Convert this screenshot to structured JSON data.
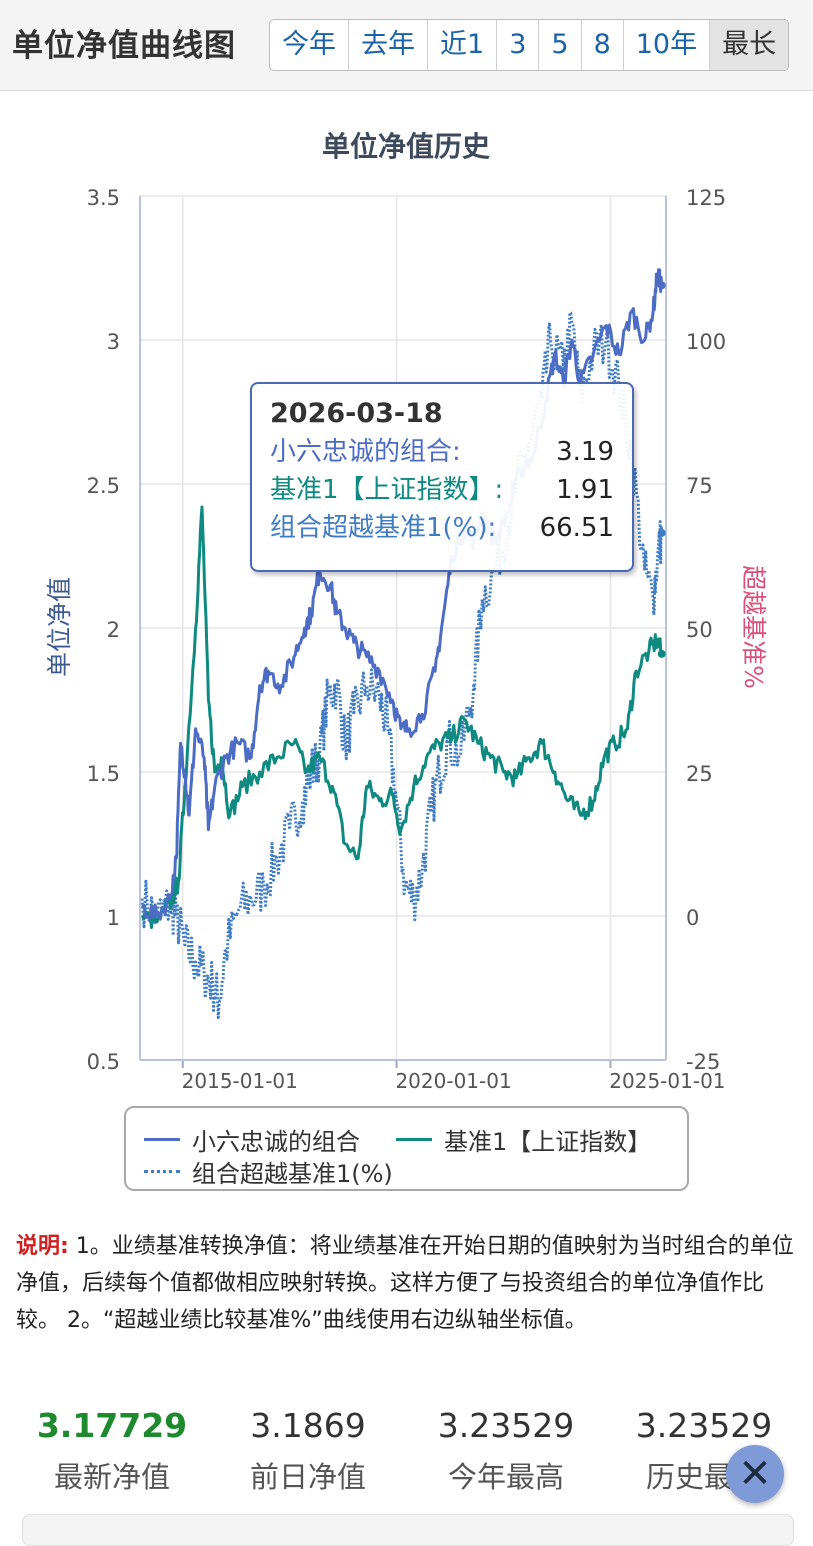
{
  "header": {
    "title": "单位净值曲线图",
    "ranges": [
      "今年",
      "去年",
      "近1",
      "3",
      "5",
      "8",
      "10年",
      "最长"
    ],
    "active_range": "最长"
  },
  "tooltip": {
    "date": "2026-03-18",
    "rows": [
      {
        "label": "小六忠诚的组合:",
        "value": "3.19"
      },
      {
        "label": "基准1【上证指数】:",
        "value": "1.91"
      },
      {
        "label": "组合超越基准1(%):",
        "value": "66.51"
      }
    ]
  },
  "chart_data": {
    "type": "line",
    "title": "单位净值历史",
    "ylabel": "单位净值",
    "y2label": "超越基准%",
    "ylim": [
      0.5,
      3.5
    ],
    "y2lim": [
      -25,
      125
    ],
    "yticks": [
      "3.5",
      "3",
      "2.5",
      "2",
      "1.5",
      "1",
      "0.5"
    ],
    "y2ticks": [
      "125",
      "100",
      "75",
      "50",
      "25",
      "0",
      "-25"
    ],
    "xlim": [
      2014.0,
      2026.3
    ],
    "xticks": [
      {
        "label": "2015-01-01",
        "x": 2015.0
      },
      {
        "label": "2020-01-01",
        "x": 2020.0
      },
      {
        "label": "2025-01-01",
        "x": 2025.0
      }
    ],
    "grid": true,
    "legend_position": "bottom",
    "series": [
      {
        "name": "小六忠诚的组合",
        "axis": "left",
        "color": "#4d6cc4",
        "style": "solid",
        "points": [
          [
            2014.05,
            1.03
          ],
          [
            2014.4,
            1.0
          ],
          [
            2014.7,
            1.06
          ],
          [
            2014.85,
            1.2
          ],
          [
            2014.95,
            1.6
          ],
          [
            2015.05,
            1.5
          ],
          [
            2015.15,
            1.35
          ],
          [
            2015.3,
            1.65
          ],
          [
            2015.5,
            1.55
          ],
          [
            2015.6,
            1.3
          ],
          [
            2015.75,
            1.45
          ],
          [
            2016.0,
            1.55
          ],
          [
            2016.3,
            1.6
          ],
          [
            2016.6,
            1.55
          ],
          [
            2016.8,
            1.8
          ],
          [
            2017.0,
            1.85
          ],
          [
            2017.3,
            1.8
          ],
          [
            2017.6,
            1.9
          ],
          [
            2017.85,
            2.0
          ],
          [
            2018.0,
            2.05
          ],
          [
            2018.2,
            2.2
          ],
          [
            2018.45,
            2.15
          ],
          [
            2018.6,
            2.05
          ],
          [
            2018.8,
            2.0
          ],
          [
            2019.0,
            1.95
          ],
          [
            2019.3,
            1.9
          ],
          [
            2019.6,
            1.85
          ],
          [
            2019.9,
            1.75
          ],
          [
            2020.1,
            1.65
          ],
          [
            2020.3,
            1.65
          ],
          [
            2020.6,
            1.7
          ],
          [
            2020.9,
            1.85
          ],
          [
            2021.1,
            2.05
          ],
          [
            2021.3,
            2.25
          ],
          [
            2021.6,
            2.35
          ],
          [
            2021.8,
            2.3
          ],
          [
            2022.0,
            2.4
          ],
          [
            2022.3,
            2.3
          ],
          [
            2022.6,
            2.4
          ],
          [
            2022.9,
            2.55
          ],
          [
            2023.2,
            2.6
          ],
          [
            2023.5,
            2.8
          ],
          [
            2023.7,
            2.95
          ],
          [
            2023.9,
            2.85
          ],
          [
            2024.1,
            3.0
          ],
          [
            2024.3,
            2.85
          ],
          [
            2024.6,
            2.95
          ],
          [
            2024.9,
            3.05
          ],
          [
            2025.2,
            2.95
          ],
          [
            2025.5,
            3.1
          ],
          [
            2025.8,
            3.0
          ],
          [
            2026.0,
            3.1
          ],
          [
            2026.1,
            3.23
          ],
          [
            2026.2,
            3.19
          ]
        ]
      },
      {
        "name": "基准1【上证指数】",
        "axis": "left",
        "color": "#0e8a80",
        "style": "solid",
        "points": [
          [
            2014.05,
            1.0
          ],
          [
            2014.4,
            0.98
          ],
          [
            2014.7,
            1.04
          ],
          [
            2014.9,
            1.12
          ],
          [
            2015.05,
            1.45
          ],
          [
            2015.3,
            2.0
          ],
          [
            2015.45,
            2.42
          ],
          [
            2015.6,
            1.75
          ],
          [
            2015.75,
            1.5
          ],
          [
            2015.9,
            1.55
          ],
          [
            2016.1,
            1.35
          ],
          [
            2016.4,
            1.45
          ],
          [
            2016.8,
            1.5
          ],
          [
            2017.2,
            1.55
          ],
          [
            2017.6,
            1.6
          ],
          [
            2017.9,
            1.5
          ],
          [
            2018.2,
            1.55
          ],
          [
            2018.5,
            1.45
          ],
          [
            2018.8,
            1.25
          ],
          [
            2019.1,
            1.2
          ],
          [
            2019.3,
            1.45
          ],
          [
            2019.6,
            1.4
          ],
          [
            2019.9,
            1.42
          ],
          [
            2020.1,
            1.3
          ],
          [
            2020.4,
            1.45
          ],
          [
            2020.7,
            1.55
          ],
          [
            2021.0,
            1.6
          ],
          [
            2021.3,
            1.62
          ],
          [
            2021.6,
            1.68
          ],
          [
            2021.9,
            1.6
          ],
          [
            2022.2,
            1.55
          ],
          [
            2022.5,
            1.5
          ],
          [
            2022.8,
            1.48
          ],
          [
            2023.1,
            1.55
          ],
          [
            2023.4,
            1.6
          ],
          [
            2023.7,
            1.5
          ],
          [
            2024.0,
            1.4
          ],
          [
            2024.3,
            1.35
          ],
          [
            2024.6,
            1.4
          ],
          [
            2024.85,
            1.55
          ],
          [
            2025.1,
            1.6
          ],
          [
            2025.4,
            1.65
          ],
          [
            2025.6,
            1.85
          ],
          [
            2025.9,
            1.92
          ],
          [
            2026.1,
            1.96
          ],
          [
            2026.2,
            1.91
          ]
        ]
      },
      {
        "name": "组合超越基准1(%)",
        "axis": "right",
        "color": "#3f7cc4",
        "style": "dotted",
        "points": [
          [
            2014.05,
            3
          ],
          [
            2014.4,
            0
          ],
          [
            2014.7,
            2
          ],
          [
            2014.85,
            0
          ],
          [
            2015.05,
            -5
          ],
          [
            2015.3,
            -8
          ],
          [
            2015.5,
            -10
          ],
          [
            2015.7,
            -12
          ],
          [
            2015.85,
            -15
          ],
          [
            2016.0,
            -6
          ],
          [
            2016.3,
            1
          ],
          [
            2016.6,
            3
          ],
          [
            2016.9,
            5
          ],
          [
            2017.2,
            10
          ],
          [
            2017.5,
            15
          ],
          [
            2017.8,
            20
          ],
          [
            2018.0,
            25
          ],
          [
            2018.2,
            28
          ],
          [
            2018.4,
            38
          ],
          [
            2018.6,
            40
          ],
          [
            2018.8,
            30
          ],
          [
            2019.0,
            35
          ],
          [
            2019.3,
            40
          ],
          [
            2019.6,
            38
          ],
          [
            2019.8,
            32
          ],
          [
            2020.0,
            20
          ],
          [
            2020.2,
            5
          ],
          [
            2020.4,
            3
          ],
          [
            2020.6,
            8
          ],
          [
            2020.8,
            18
          ],
          [
            2021.0,
            25
          ],
          [
            2021.2,
            30
          ],
          [
            2021.5,
            28
          ],
          [
            2021.8,
            40
          ],
          [
            2022.0,
            55
          ],
          [
            2022.3,
            60
          ],
          [
            2022.6,
            68
          ],
          [
            2022.8,
            75
          ],
          [
            2023.1,
            82
          ],
          [
            2023.4,
            90
          ],
          [
            2023.6,
            100
          ],
          [
            2023.9,
            95
          ],
          [
            2024.1,
            103
          ],
          [
            2024.3,
            90
          ],
          [
            2024.6,
            98
          ],
          [
            2024.9,
            100
          ],
          [
            2025.2,
            92
          ],
          [
            2025.5,
            80
          ],
          [
            2025.8,
            60
          ],
          [
            2026.0,
            55
          ],
          [
            2026.1,
            62
          ],
          [
            2026.2,
            66.51
          ]
        ]
      }
    ]
  },
  "legend": [
    {
      "label": "小六忠诚的组合",
      "color": "#4d6cc4",
      "style": "solid"
    },
    {
      "label": "基准1【上证指数】",
      "color": "#0e8a80",
      "style": "solid"
    },
    {
      "label": "组合超越基准1(%)",
      "color": "#3f7cc4",
      "style": "dotted"
    }
  ],
  "note": {
    "label": "说明:",
    "text": " 1。业绩基准转换净值：将业绩基准在开始日期的值映射为当时组合的单位净值，后续每个值都做相应映射转换。这样方便了与投资组合的单位净值作比较。 2。“超越业绩比较基准%”曲线使用右边纵轴坐标值。"
  },
  "stats": [
    {
      "value": "3.17729",
      "label": "最新净值",
      "highlight": true
    },
    {
      "value": "3.1869",
      "label": "前日净值",
      "highlight": false
    },
    {
      "value": "3.23529",
      "label": "今年最高",
      "highlight": false
    },
    {
      "value": "3.23529",
      "label": "历史最高",
      "highlight": false
    }
  ],
  "close_button": {
    "icon": "close-icon",
    "glyph": "✕"
  }
}
